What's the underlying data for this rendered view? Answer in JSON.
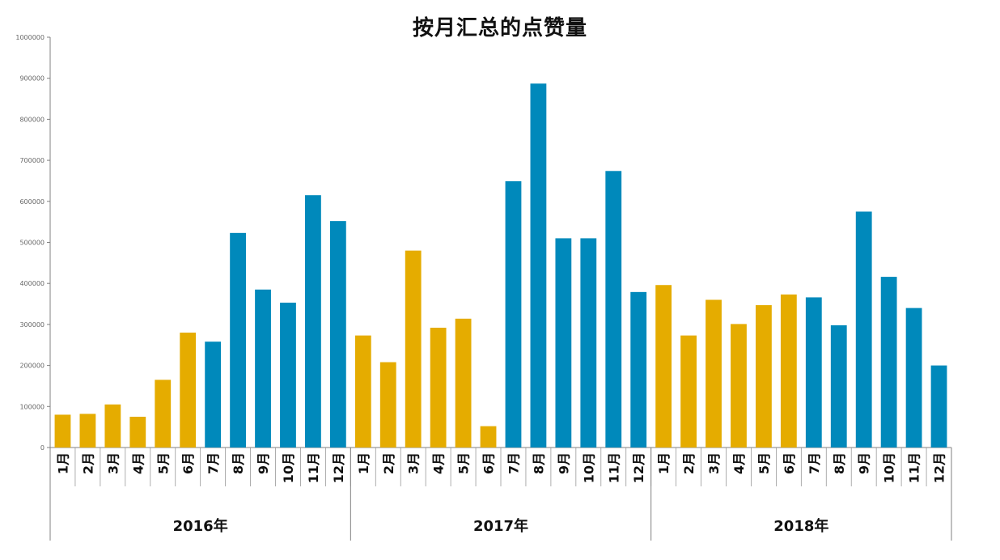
{
  "chart_data": {
    "type": "bar",
    "title": "按月汇总的点赞量",
    "ylim": [
      0,
      1000000
    ],
    "yticks": [
      0,
      100000,
      200000,
      300000,
      400000,
      500000,
      600000,
      700000,
      800000,
      900000,
      1000000
    ],
    "groups": [
      {
        "label": "2016年",
        "categories": [
          "1月",
          "2月",
          "3月",
          "4月",
          "5月",
          "6月",
          "7月",
          "8月",
          "9月",
          "10月",
          "11月",
          "12月"
        ],
        "values": [
          80000,
          82000,
          105000,
          75000,
          165000,
          280000,
          258000,
          523000,
          385000,
          353000,
          615000,
          552000
        ]
      },
      {
        "label": "2017年",
        "categories": [
          "1月",
          "2月",
          "3月",
          "4月",
          "5月",
          "6月",
          "7月",
          "8月",
          "9月",
          "10月",
          "11月",
          "12月"
        ],
        "values": [
          273000,
          208000,
          480000,
          292000,
          314000,
          52000,
          649000,
          887000,
          510000,
          510000,
          674000,
          379000
        ]
      },
      {
        "label": "2018年",
        "categories": [
          "1月",
          "2月",
          "3月",
          "4月",
          "5月",
          "6月",
          "7月",
          "8月",
          "9月",
          "10月",
          "11月",
          "12月"
        ],
        "values": [
          396000,
          273000,
          360000,
          301000,
          347000,
          373000,
          366000,
          298000,
          575000,
          416000,
          340000,
          200000
        ]
      }
    ],
    "colors": {
      "first_half": "#E5AC00",
      "second_half": "#0089BB"
    },
    "grid": false,
    "legend": "none"
  }
}
